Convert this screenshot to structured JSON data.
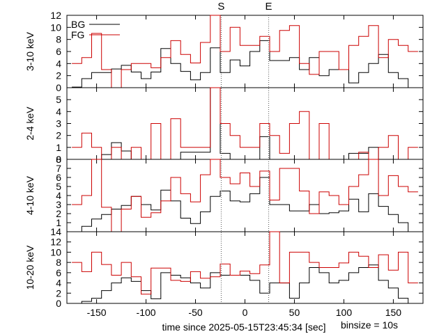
{
  "chart_data": [
    {
      "type": "line",
      "ylabel": "3-10 keV",
      "ylim": [
        0,
        12
      ],
      "yticks": [
        0,
        2,
        4,
        6,
        8,
        10,
        12
      ],
      "series": [
        {
          "name": "BG",
          "color": "#000000",
          "x": [
            -170,
            -160,
            -150,
            -140,
            -130,
            -120,
            -110,
            -100,
            -90,
            -80,
            -70,
            -60,
            -50,
            -40,
            -30,
            -20,
            -10,
            0,
            10,
            20,
            30,
            40,
            50,
            60,
            70,
            80,
            90,
            100,
            110,
            120,
            130,
            140,
            150,
            160,
            170
          ],
          "values": [
            0.1,
            1.5,
            2.5,
            2.5,
            3.1,
            3.7,
            2.6,
            1.5,
            2.6,
            6.5,
            4.0,
            2.7,
            1.3,
            2.5,
            6.6,
            2.5,
            4.6,
            3.6,
            6.0,
            7.8,
            4.5,
            4.5,
            5.0,
            3.0,
            5.0,
            2.0,
            3.0,
            3.0,
            0.8,
            2.5,
            4.0,
            5.5,
            2.5,
            1.5,
            0.0
          ]
        },
        {
          "name": "FG",
          "color": "#cc0000",
          "x": [
            -170,
            -160,
            -150,
            -140,
            -130,
            -120,
            -110,
            -100,
            -90,
            -80,
            -70,
            -60,
            -50,
            -40,
            -30,
            -20,
            -10,
            0,
            10,
            20,
            30,
            40,
            50,
            60,
            70,
            80,
            90,
            100,
            110,
            120,
            130,
            140,
            150,
            160,
            170
          ],
          "values": [
            4.0,
            5.0,
            9.0,
            3.0,
            0.0,
            3.0,
            4.0,
            4.0,
            3.3,
            5.0,
            7.8,
            5.5,
            4.1,
            7.5,
            12.8,
            6.0,
            10.0,
            7.0,
            7.0,
            8.5,
            6.0,
            9.5,
            10.3,
            4.0,
            2.2,
            6.0,
            6.0,
            3.0,
            7.0,
            8.5,
            10.3,
            5.0,
            8.0,
            7.0,
            6.0
          ]
        }
      ]
    },
    {
      "type": "line",
      "ylabel": "2-4 keV",
      "ylim": [
        0,
        6
      ],
      "yticks": [
        0,
        1,
        2,
        3,
        4,
        5
      ],
      "series": [
        {
          "name": "BG",
          "color": "#000000",
          "x": [
            -170,
            -160,
            -150,
            -140,
            -130,
            -120,
            -110,
            -100,
            -90,
            -80,
            -70,
            -60,
            -50,
            -40,
            -30,
            -20,
            -10,
            0,
            10,
            20,
            30,
            40,
            50,
            60,
            70,
            80,
            90,
            100,
            110,
            120,
            130,
            140,
            150,
            160,
            170
          ],
          "values": [
            0.0,
            0.0,
            0.0,
            0.4,
            1.4,
            0.7,
            0.0,
            0.0,
            0.0,
            0.0,
            0.0,
            0.6,
            0.6,
            0.6,
            6.3,
            0.5,
            0.0,
            0.0,
            0.0,
            1.9,
            0.0,
            0.0,
            0.0,
            0.0,
            0.0,
            0.0,
            0.0,
            0.0,
            0.5,
            0.5,
            1.0,
            0.0,
            0.0,
            0.0,
            0.0
          ]
        },
        {
          "name": "FG",
          "color": "#cc0000",
          "x": [
            -170,
            -160,
            -150,
            -140,
            -130,
            -120,
            -110,
            -100,
            -90,
            -80,
            -70,
            -60,
            -50,
            -40,
            -30,
            -20,
            -10,
            0,
            10,
            20,
            30,
            40,
            50,
            60,
            70,
            80,
            90,
            100,
            110,
            120,
            130,
            140,
            150,
            160,
            170
          ],
          "values": [
            1.0,
            2.2,
            1.0,
            0.0,
            1.0,
            0.0,
            1.0,
            0.0,
            3.0,
            0.0,
            3.4,
            1.0,
            1.0,
            1.0,
            6.3,
            3.0,
            2.0,
            1.0,
            1.0,
            3.0,
            2.0,
            0.5,
            3.0,
            4.0,
            0.0,
            3.0,
            0.0,
            0.0,
            0.0,
            0.6,
            0.0,
            1.0,
            2.0,
            0.0,
            1.0
          ]
        }
      ]
    },
    {
      "type": "line",
      "ylabel": "4-10 keV",
      "ylim": [
        0,
        8
      ],
      "yticks": [
        1,
        2,
        3,
        4,
        5,
        6,
        7,
        8
      ],
      "series": [
        {
          "name": "BG",
          "color": "#000000",
          "x": [
            -170,
            -160,
            -150,
            -140,
            -130,
            -120,
            -110,
            -100,
            -90,
            -80,
            -70,
            -60,
            -50,
            -40,
            -30,
            -20,
            -10,
            0,
            10,
            20,
            30,
            40,
            50,
            60,
            70,
            80,
            90,
            100,
            110,
            120,
            130,
            140,
            150,
            160,
            170
          ],
          "values": [
            0.0,
            0.6,
            1.4,
            1.9,
            2.5,
            2.9,
            3.9,
            3.0,
            2.4,
            4.6,
            3.4,
            1.5,
            0.9,
            2.2,
            3.9,
            4.5,
            3.4,
            3.3,
            4.2,
            6.0,
            3.0,
            3.0,
            2.3,
            2.3,
            3.0,
            2.0,
            2.1,
            2.3,
            3.6,
            2.2,
            4.2,
            2.8,
            1.9,
            1.0,
            0.0
          ]
        },
        {
          "name": "FG",
          "color": "#cc0000",
          "x": [
            -170,
            -160,
            -150,
            -140,
            -130,
            -120,
            -110,
            -100,
            -90,
            -80,
            -70,
            -60,
            -50,
            -40,
            -30,
            -20,
            -10,
            0,
            10,
            20,
            30,
            40,
            50,
            60,
            70,
            80,
            90,
            100,
            110,
            120,
            130,
            140,
            150,
            160,
            170
          ],
          "values": [
            3.0,
            4.0,
            8.2,
            2.7,
            0.0,
            2.5,
            3.9,
            1.6,
            2.1,
            3.4,
            6.0,
            4.2,
            3.3,
            6.3,
            8.5,
            6.0,
            5.3,
            6.5,
            5.0,
            6.7,
            3.5,
            7.0,
            7.0,
            4.5,
            2.0,
            4.4,
            4.0,
            3.0,
            5.0,
            6.3,
            8.2,
            4.0,
            6.2,
            5.0,
            4.4
          ]
        }
      ]
    },
    {
      "type": "line",
      "ylabel": "10-20 keV",
      "ylim": [
        0,
        14
      ],
      "yticks": [
        0,
        2,
        4,
        6,
        8,
        10,
        12,
        14
      ],
      "series": [
        {
          "name": "BG",
          "color": "#000000",
          "x": [
            -170,
            -160,
            -150,
            -140,
            -130,
            -120,
            -110,
            -100,
            -90,
            -80,
            -70,
            -60,
            -50,
            -40,
            -30,
            -20,
            -10,
            0,
            10,
            20,
            30,
            40,
            50,
            60,
            70,
            80,
            90,
            100,
            110,
            120,
            130,
            140,
            150,
            160,
            170
          ],
          "values": [
            0.0,
            0.4,
            1.0,
            2.5,
            4.0,
            5.0,
            4.3,
            2.5,
            0.9,
            6.0,
            5.5,
            5.0,
            4.0,
            3.0,
            6.0,
            5.5,
            5.5,
            5.5,
            4.5,
            2.0,
            4.0,
            4.0,
            1.0,
            4.0,
            7.0,
            6.0,
            4.0,
            4.5,
            6.0,
            7.0,
            7.5,
            4.5,
            3.0,
            1.0,
            0.0
          ]
        },
        {
          "name": "FG",
          "color": "#cc0000",
          "x": [
            -170,
            -160,
            -150,
            -140,
            -130,
            -120,
            -110,
            -100,
            -90,
            -80,
            -70,
            -60,
            -50,
            -40,
            -30,
            -20,
            -10,
            0,
            10,
            20,
            30,
            40,
            50,
            60,
            70,
            80,
            90,
            100,
            110,
            120,
            130,
            140,
            150,
            160,
            170
          ],
          "values": [
            8.0,
            6.2,
            10.0,
            7.6,
            5.5,
            8.0,
            5.2,
            1.8,
            6.9,
            6.9,
            4.5,
            4.3,
            6.2,
            4.9,
            5.2,
            7.7,
            5.5,
            6.3,
            5.8,
            7.5,
            14.5,
            4.0,
            10.0,
            10.0,
            8.0,
            7.0,
            7.0,
            7.9,
            10.0,
            9.2,
            7.0,
            9.5,
            6.5,
            10.0,
            4.0
          ]
        }
      ]
    }
  ],
  "xaxis": {
    "label": "time since 2025-05-15T23:45:34 [sec]",
    "xlim": [
      -180,
      180
    ],
    "ticks": [
      -150,
      -100,
      -50,
      0,
      50,
      100,
      150
    ]
  },
  "markers": [
    {
      "label": "S",
      "x": -24
    },
    {
      "label": "E",
      "x": 24
    }
  ],
  "legend": {
    "placement": "top-left",
    "entries": [
      "BG",
      "FG"
    ]
  },
  "binsize_label": "binsize = 10s",
  "colors": {
    "bg": "#000000",
    "fg": "#cc0000",
    "marker": "#555555"
  }
}
